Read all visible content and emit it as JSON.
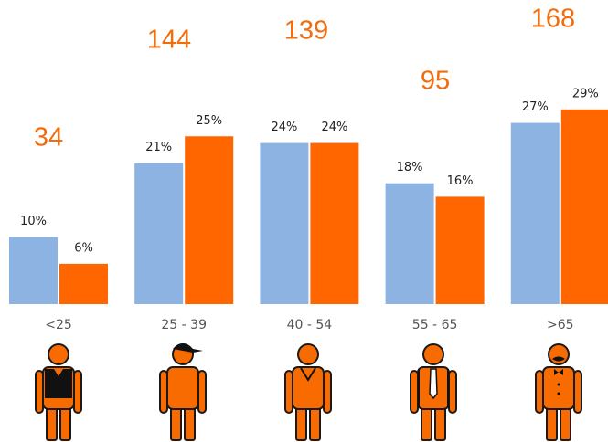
{
  "chart_data": {
    "type": "bar",
    "categories": [
      "<25",
      "25 - 39",
      "40 - 54",
      "55 - 65",
      ">65"
    ],
    "series": [
      {
        "color": "#8db3e2",
        "values": [
          10,
          21,
          24,
          18,
          27
        ],
        "value_labels": [
          "10%",
          "21%",
          "24%",
          "18%",
          "27%"
        ]
      },
      {
        "color": "#ff6600",
        "values": [
          6,
          25,
          24,
          16,
          29
        ],
        "value_labels": [
          "6%",
          "25%",
          "24%",
          "16%",
          "29%"
        ]
      }
    ],
    "annotations": [
      34,
      144,
      139,
      95,
      168
    ]
  }
}
